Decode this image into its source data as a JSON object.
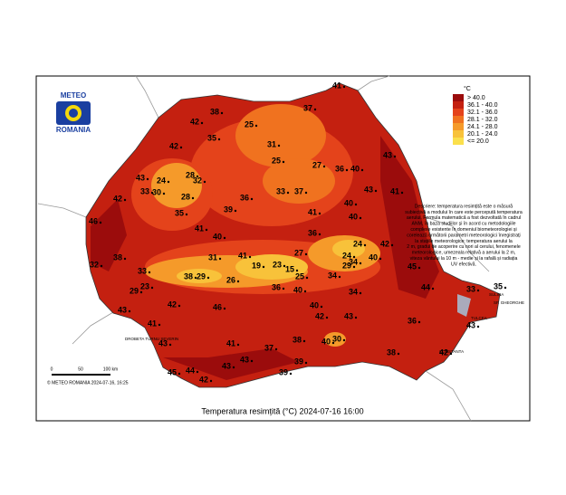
{
  "logo": {
    "top": "METEO",
    "bottom": "ROMANIA"
  },
  "title": "Temperatura resimțită (°C) 2024-07-16 16:00",
  "copyright": "© METEO ROMANIA 2024-07-16, 16:25",
  "scale": {
    "labels": [
      "0",
      "50",
      "100 km"
    ]
  },
  "legend": {
    "title": "°C",
    "items": [
      {
        "label": "> 40.0",
        "color": "#9b0c0c"
      },
      {
        "label": "36.1 - 40.0",
        "color": "#c42010"
      },
      {
        "label": "32.1 - 36.0",
        "color": "#e4431b"
      },
      {
        "label": "28.1 - 32.0",
        "color": "#f0721f"
      },
      {
        "label": "24.1 - 28.0",
        "color": "#f59a2a"
      },
      {
        "label": "20.1 - 24.0",
        "color": "#f8c23a"
      },
      {
        "label": "<= 20.0",
        "color": "#fbe04c"
      }
    ]
  },
  "description": [
    "Descriere: temperatura resimțită este o măsură",
    "subiectivă a modului în care este percepută temperatura",
    "aerului. Formula matematică a fost dezvoltată în cadrul",
    "ANM, în baza studiilor și în acord cu metodologiile",
    "complexe existente în domeniul biometeorologiei și",
    "corelează următorii parametri meteorologici înregistrați",
    "la stațiile meteorologice: temperatura aerului la",
    "2 m, gradul de acoperire cu nori al cerului, fenomenele",
    "meteorologice, umezeala relativă a aerului la 2 m,",
    "viteza vântului la 10 m - medie și la rafală și radiația",
    "UV efectivă."
  ],
  "places": [
    "SULINA",
    "TULCEA",
    "CONSTANTA",
    "DROBETA TURNU SEVERIN",
    "SF. GHEORGHE"
  ],
  "stations": {
    "values": [
      41,
      37,
      38,
      42,
      25,
      35,
      31,
      42,
      25,
      27,
      36,
      40,
      43,
      28,
      32,
      43,
      24,
      30,
      33,
      28,
      43,
      41,
      33,
      37,
      36,
      42,
      40,
      35,
      39,
      41,
      40,
      46,
      41,
      40,
      36,
      24,
      24,
      42,
      40,
      38,
      31,
      41,
      19,
      23,
      15,
      27,
      25,
      34,
      29,
      45,
      32,
      33,
      38,
      29,
      26,
      34,
      23,
      29,
      36,
      40,
      34,
      44,
      33,
      35,
      40,
      46,
      43,
      42,
      43,
      42,
      41,
      36,
      43,
      40,
      30,
      38,
      37,
      43,
      41,
      43,
      39,
      43,
      45,
      44,
      38,
      42,
      42,
      39
    ]
  }
}
